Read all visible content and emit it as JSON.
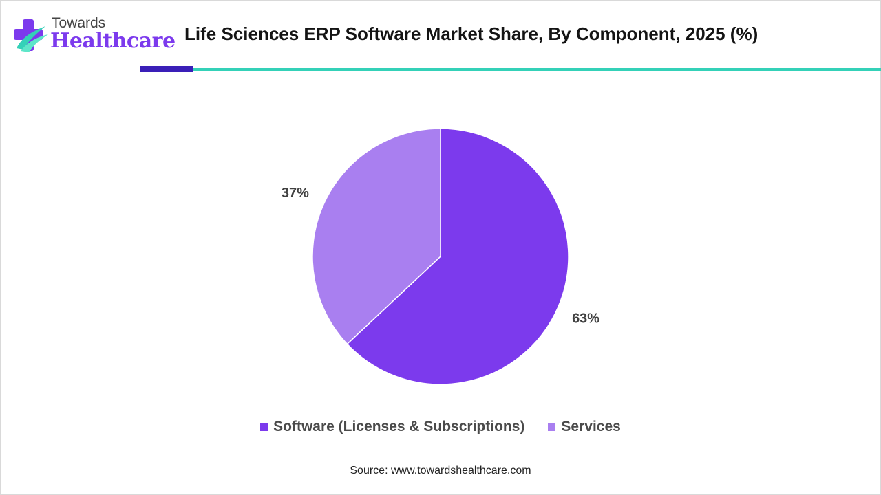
{
  "brand": {
    "line1": "Towards",
    "line2": "Healthcare"
  },
  "chart_data": {
    "type": "pie",
    "title": "Life Sciences ERP Software Market Share, By Component, 2025 (%)",
    "categories": [
      "Software (Licenses & Subscriptions)",
      "Services"
    ],
    "values": [
      63,
      37
    ],
    "labels": [
      "63%",
      "37%"
    ],
    "colors": [
      "#7c3aed",
      "#a97ff0"
    ],
    "legend_position": "bottom"
  },
  "source": "Source: www.towardshealthcare.com"
}
